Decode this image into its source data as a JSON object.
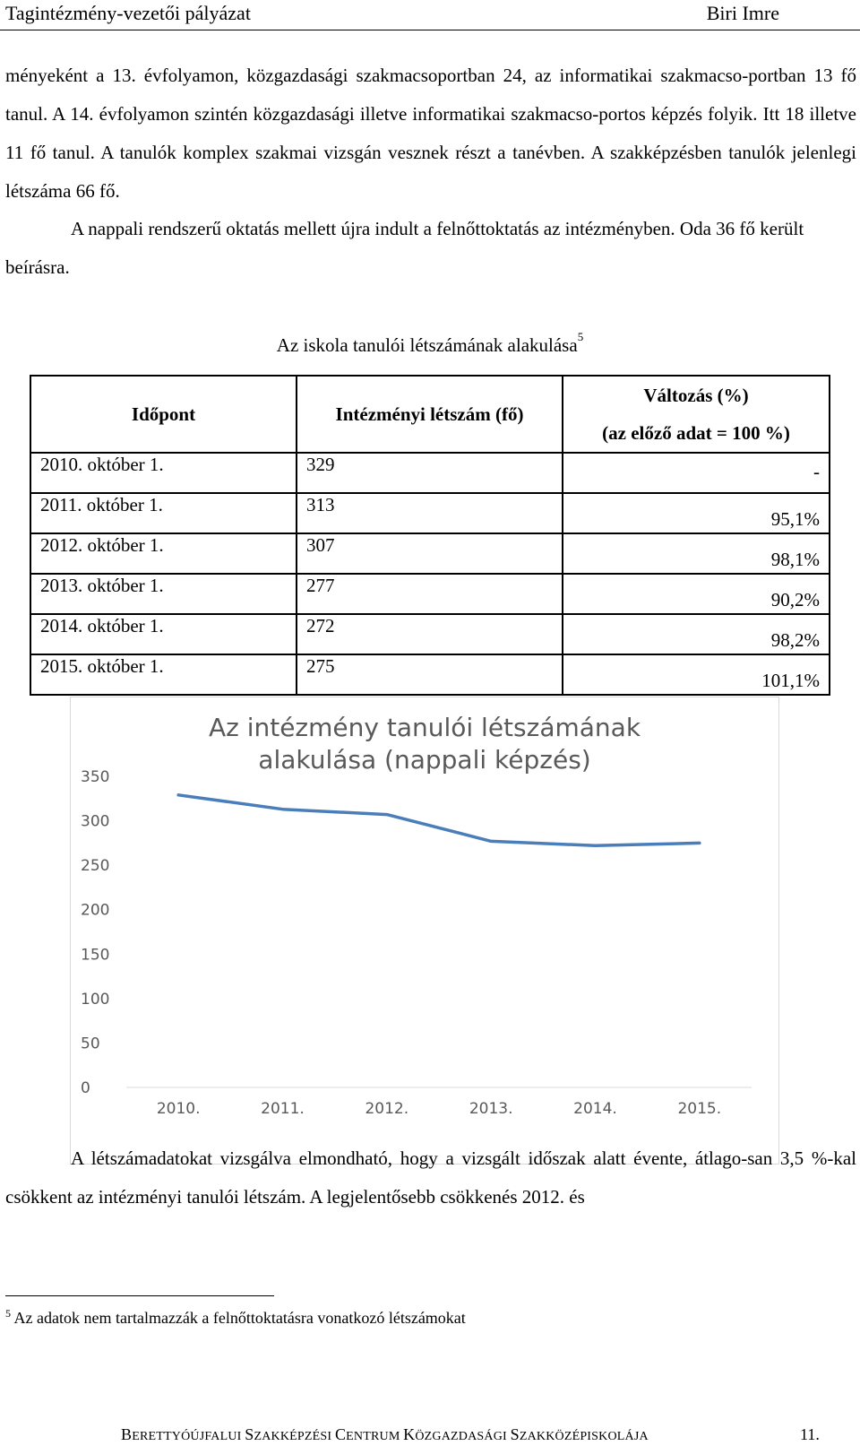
{
  "header": {
    "left": "Tagintézmény-vezetői pályázat",
    "right": "Biri Imre"
  },
  "paragraphs": {
    "p1": "ményeként a 13. évfolyamon, közgazdasági szakmacsoportban 24, az informatikai szakmacso-portban 13 fő tanul. A 14. évfolyamon szintén közgazdasági illetve informatikai szakmacso-portos képzés folyik. Itt 18 illetve 11 fő tanul. A tanulók komplex szakmai vizsgán vesznek részt a tanévben. A szakképzésben tanulók jelenlegi létszáma 66 fő.",
    "p2": "A nappali rendszerű oktatás mellett újra indult a felnőttoktatás az intézményben. Oda 36 fő került beírásra.",
    "p3": "A létszámadatokat vizsgálva elmondható, hogy a vizsgált időszak alatt évente, átlago-san 3,5 %-kal csökkent az intézményi tanulói létszám. A legjelentősebb csökkenés 2012. és"
  },
  "table": {
    "caption": "Az iskola tanulói létszámának alakulása",
    "caption_sup": "5",
    "headers": {
      "date": "Időpont",
      "count": "Intézményi létszám (fő)",
      "change_1": "Változás (%)",
      "change_2": "(az előző adat = 100 %)"
    },
    "rows": [
      {
        "date": "2010. október 1.",
        "count": "329",
        "change": "-"
      },
      {
        "date": "2011. október 1.",
        "count": "313",
        "change": "95,1%"
      },
      {
        "date": "2012. október 1.",
        "count": "307",
        "change": "98,1%"
      },
      {
        "date": "2013. október 1.",
        "count": "277",
        "change": "90,2%"
      },
      {
        "date": "2014. október 1.",
        "count": "272",
        "change": "98,2%"
      },
      {
        "date": "2015. október 1.",
        "count": "275",
        "change": "101,1%"
      }
    ]
  },
  "chart_data": {
    "type": "line",
    "title_line1": "Az intézmény tanulói létszámának",
    "title_line2": "alakulása (nappali képzés)",
    "categories": [
      "2010.",
      "2011.",
      "2012.",
      "2013.",
      "2014.",
      "2015."
    ],
    "series": [
      {
        "values": [
          329,
          313,
          307,
          277,
          272,
          275
        ],
        "color": "#4a7ebb"
      }
    ],
    "ylim": [
      0,
      350
    ],
    "yticks": [
      "350",
      "300",
      "250",
      "200",
      "150",
      "100",
      "50",
      "0"
    ],
    "grid": false,
    "axis_color": "#d9d9d9",
    "text_color": "#595959"
  },
  "footnote": {
    "num": "5",
    "text": "Az adatok nem tartalmazzák a felnőttoktatásra vonatkozó létszámokat"
  },
  "footer": {
    "parts": [
      {
        "cap": "B",
        "rest": "ERETTYÓÚJFALUI "
      },
      {
        "cap": "S",
        "rest": "ZAKKÉPZÉSI "
      },
      {
        "cap": "C",
        "rest": "ENTRUM "
      },
      {
        "cap": "K",
        "rest": "ÖZGAZDASÁGI "
      },
      {
        "cap": "S",
        "rest": "ZAKKÖZÉPISKOLÁJA"
      }
    ],
    "page": "11."
  }
}
